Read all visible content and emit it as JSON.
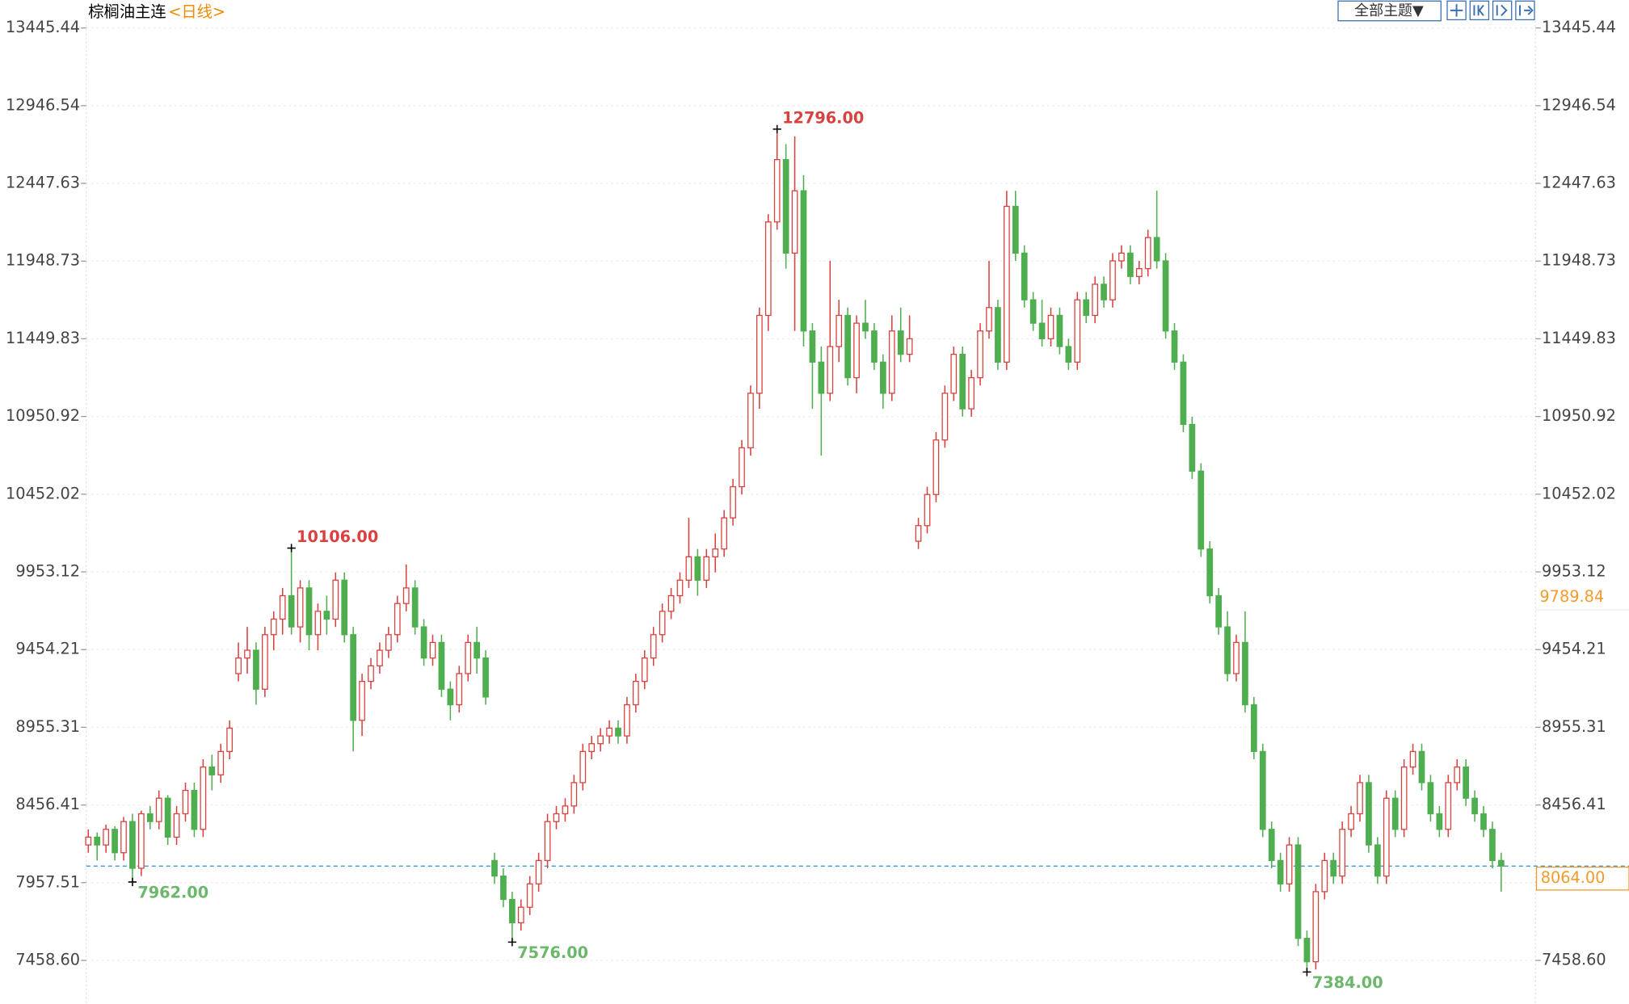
{
  "toolbar": {
    "theme_button": "全部主题▼"
  },
  "chart_data": {
    "type": "candlestick",
    "title": "棕榈油主连",
    "period": "<日线>",
    "up_color": "#d9413f",
    "down_color": "#4fae4f",
    "ylim": [
      7192,
      13625
    ],
    "yticks": [
      13445.44,
      12946.54,
      12447.63,
      11948.73,
      11449.83,
      10950.92,
      10452.02,
      9953.12,
      9454.21,
      8955.31,
      8456.41,
      7957.51,
      {
        "value": 7458.6,
        "label": "7458.60"
      }
    ],
    "grid": true,
    "high_labels": [
      {
        "value": 12796,
        "label": "12796.00"
      },
      {
        "value": 10106,
        "label": "10106.00"
      }
    ],
    "low_labels": [
      {
        "value": 7962,
        "label": "7962.00"
      },
      {
        "value": 7576,
        "label": "7576.00"
      },
      {
        "value": 7384,
        "label": "7384.00"
      }
    ],
    "last_price": {
      "value": 8064,
      "label": "8064.00"
    },
    "cursor_price": {
      "value": 9789.84,
      "label": "9789.84"
    },
    "candles": [
      [
        8200,
        8300,
        8150,
        8250
      ],
      [
        8250,
        8280,
        8100,
        8200
      ],
      [
        8200,
        8330,
        8150,
        8300
      ],
      [
        8300,
        8320,
        8100,
        8150
      ],
      [
        8150,
        8380,
        8100,
        8350
      ],
      [
        8350,
        8400,
        7962,
        8050
      ],
      [
        8050,
        8420,
        8000,
        8400
      ],
      [
        8400,
        8450,
        8300,
        8350
      ],
      [
        8350,
        8550,
        8300,
        8500
      ],
      [
        8500,
        8520,
        8200,
        8250
      ],
      [
        8250,
        8450,
        8200,
        8400
      ],
      [
        8400,
        8600,
        8350,
        8550
      ],
      [
        8550,
        8600,
        8250,
        8300
      ],
      [
        8300,
        8750,
        8250,
        8700
      ],
      [
        8700,
        8780,
        8550,
        8650
      ],
      [
        8650,
        8850,
        8600,
        8800
      ],
      [
        8800,
        9000,
        8750,
        8950
      ],
      [
        9300,
        9500,
        9250,
        9400
      ],
      [
        9400,
        9600,
        9300,
        9450
      ],
      [
        9450,
        9500,
        9100,
        9200
      ],
      [
        9200,
        9600,
        9150,
        9550
      ],
      [
        9550,
        9700,
        9450,
        9650
      ],
      [
        9650,
        9850,
        9550,
        9800
      ],
      [
        9800,
        10106,
        9550,
        9600
      ],
      [
        9600,
        9900,
        9500,
        9850
      ],
      [
        9850,
        9900,
        9450,
        9550
      ],
      [
        9550,
        9750,
        9450,
        9700
      ],
      [
        9700,
        9800,
        9550,
        9650
      ],
      [
        9650,
        9950,
        9600,
        9900
      ],
      [
        9900,
        9950,
        9500,
        9550
      ],
      [
        9550,
        9600,
        8800,
        9000
      ],
      [
        9000,
        9300,
        8900,
        9250
      ],
      [
        9250,
        9400,
        9200,
        9350
      ],
      [
        9350,
        9500,
        9300,
        9450
      ],
      [
        9450,
        9600,
        9400,
        9550
      ],
      [
        9550,
        9800,
        9500,
        9750
      ],
      [
        9750,
        10000,
        9700,
        9850
      ],
      [
        9850,
        9900,
        9550,
        9600
      ],
      [
        9600,
        9650,
        9350,
        9400
      ],
      [
        9400,
        9550,
        9350,
        9500
      ],
      [
        9500,
        9550,
        9150,
        9200
      ],
      [
        9200,
        9250,
        9000,
        9100
      ],
      [
        9100,
        9350,
        9050,
        9300
      ],
      [
        9300,
        9550,
        9250,
        9500
      ],
      [
        9500,
        9600,
        9300,
        9400
      ],
      [
        9400,
        9450,
        9100,
        9150
      ],
      [
        8100,
        8150,
        7950,
        8000
      ],
      [
        8000,
        8050,
        7800,
        7850
      ],
      [
        7850,
        7900,
        7576,
        7700
      ],
      [
        7700,
        7850,
        7650,
        7800
      ],
      [
        7800,
        8000,
        7750,
        7950
      ],
      [
        7950,
        8150,
        7900,
        8100
      ],
      [
        8100,
        8400,
        8050,
        8350
      ],
      [
        8350,
        8450,
        8300,
        8400
      ],
      [
        8400,
        8500,
        8350,
        8450
      ],
      [
        8450,
        8650,
        8400,
        8600
      ],
      [
        8600,
        8850,
        8550,
        8800
      ],
      [
        8800,
        8900,
        8750,
        8850
      ],
      [
        8850,
        8950,
        8800,
        8900
      ],
      [
        8900,
        9000,
        8850,
        8950
      ],
      [
        8950,
        9000,
        8850,
        8900
      ],
      [
        8900,
        9150,
        8850,
        9100
      ],
      [
        9100,
        9300,
        9050,
        9250
      ],
      [
        9250,
        9450,
        9200,
        9400
      ],
      [
        9400,
        9600,
        9350,
        9550
      ],
      [
        9550,
        9750,
        9500,
        9700
      ],
      [
        9700,
        9850,
        9650,
        9800
      ],
      [
        9800,
        9950,
        9750,
        9900
      ],
      [
        9900,
        10300,
        9850,
        10050
      ],
      [
        10050,
        10100,
        9800,
        9900
      ],
      [
        9900,
        10100,
        9850,
        10050
      ],
      [
        10050,
        10200,
        9950,
        10100
      ],
      [
        10100,
        10350,
        10050,
        10300
      ],
      [
        10300,
        10550,
        10250,
        10500
      ],
      [
        10500,
        10800,
        10450,
        10750
      ],
      [
        10750,
        11150,
        10700,
        11100
      ],
      [
        11100,
        11650,
        11000,
        11600
      ],
      [
        11600,
        12250,
        11500,
        12200
      ],
      [
        12200,
        12796,
        12150,
        12600
      ],
      [
        12600,
        12700,
        11900,
        12000
      ],
      [
        12000,
        12750,
        11500,
        12400
      ],
      [
        12400,
        12500,
        11400,
        11500
      ],
      [
        11500,
        11550,
        11000,
        11300
      ],
      [
        11300,
        11400,
        10700,
        11100
      ],
      [
        11100,
        11950,
        11050,
        11400
      ],
      [
        11400,
        11700,
        11300,
        11600
      ],
      [
        11600,
        11650,
        11150,
        11200
      ],
      [
        11200,
        11600,
        11100,
        11550
      ],
      [
        11550,
        11700,
        11450,
        11500
      ],
      [
        11500,
        11550,
        11250,
        11300
      ],
      [
        11300,
        11350,
        11000,
        11100
      ],
      [
        11100,
        11600,
        11050,
        11500
      ],
      [
        11500,
        11650,
        11300,
        11350
      ],
      [
        11350,
        11600,
        11300,
        11450
      ],
      [
        10150,
        10300,
        10100,
        10250
      ],
      [
        10250,
        10500,
        10200,
        10450
      ],
      [
        10450,
        10850,
        10400,
        10800
      ],
      [
        10800,
        11150,
        10750,
        11100
      ],
      [
        11100,
        11400,
        11050,
        11350
      ],
      [
        11350,
        11400,
        10950,
        11000
      ],
      [
        11000,
        11250,
        10950,
        11200
      ],
      [
        11200,
        11550,
        11150,
        11500
      ],
      [
        11500,
        11950,
        11450,
        11650
      ],
      [
        11650,
        11700,
        11250,
        11300
      ],
      [
        11300,
        12400,
        11250,
        12300
      ],
      [
        12300,
        12400,
        11950,
        12000
      ],
      [
        12000,
        12050,
        11650,
        11700
      ],
      [
        11700,
        11750,
        11500,
        11550
      ],
      [
        11550,
        11700,
        11400,
        11450
      ],
      [
        11450,
        11650,
        11400,
        11600
      ],
      [
        11600,
        11650,
        11350,
        11400
      ],
      [
        11400,
        11450,
        11250,
        11300
      ],
      [
        11300,
        11750,
        11250,
        11700
      ],
      [
        11700,
        11750,
        11550,
        11600
      ],
      [
        11600,
        11850,
        11550,
        11800
      ],
      [
        11800,
        11850,
        11650,
        11700
      ],
      [
        11700,
        12000,
        11650,
        11950
      ],
      [
        11950,
        12050,
        11900,
        12000
      ],
      [
        12000,
        12050,
        11800,
        11850
      ],
      [
        11850,
        11950,
        11800,
        11900
      ],
      [
        11900,
        12150,
        11850,
        12100
      ],
      [
        12100,
        12400,
        11900,
        11950
      ],
      [
        11950,
        12000,
        11450,
        11500
      ],
      [
        11500,
        11550,
        11250,
        11300
      ],
      [
        11300,
        11350,
        10850,
        10900
      ],
      [
        10900,
        10950,
        10550,
        10600
      ],
      [
        10600,
        10650,
        10050,
        10100
      ],
      [
        10100,
        10150,
        9750,
        9800
      ],
      [
        9800,
        9850,
        9550,
        9600
      ],
      [
        9600,
        9700,
        9250,
        9300
      ],
      [
        9300,
        9550,
        9250,
        9500
      ],
      [
        9500,
        9700,
        9050,
        9100
      ],
      [
        9100,
        9150,
        8750,
        8800
      ],
      [
        8800,
        8850,
        8250,
        8300
      ],
      [
        8300,
        8350,
        8050,
        8100
      ],
      [
        8100,
        8150,
        7900,
        7950
      ],
      [
        7950,
        8250,
        7900,
        8200
      ],
      [
        8200,
        8250,
        7550,
        7600
      ],
      [
        7600,
        7650,
        7384,
        7450
      ],
      [
        7450,
        7950,
        7400,
        7900
      ],
      [
        7900,
        8150,
        7850,
        8100
      ],
      [
        8100,
        8150,
        7950,
        8000
      ],
      [
        8000,
        8350,
        7950,
        8300
      ],
      [
        8300,
        8450,
        8250,
        8400
      ],
      [
        8400,
        8650,
        8350,
        8600
      ],
      [
        8600,
        8650,
        8150,
        8200
      ],
      [
        8200,
        8250,
        7950,
        8000
      ],
      [
        8000,
        8550,
        7950,
        8500
      ],
      [
        8500,
        8550,
        8250,
        8300
      ],
      [
        8300,
        8750,
        8250,
        8700
      ],
      [
        8700,
        8850,
        8650,
        8800
      ],
      [
        8800,
        8850,
        8550,
        8600
      ],
      [
        8600,
        8650,
        8350,
        8400
      ],
      [
        8400,
        8450,
        8250,
        8300
      ],
      [
        8300,
        8650,
        8250,
        8600
      ],
      [
        8600,
        8750,
        8550,
        8700
      ],
      [
        8700,
        8750,
        8450,
        8500
      ],
      [
        8500,
        8550,
        8350,
        8400
      ],
      [
        8400,
        8450,
        8250,
        8300
      ],
      [
        8300,
        8350,
        8050,
        8100
      ],
      [
        8100,
        8150,
        7900,
        8064
      ]
    ]
  }
}
